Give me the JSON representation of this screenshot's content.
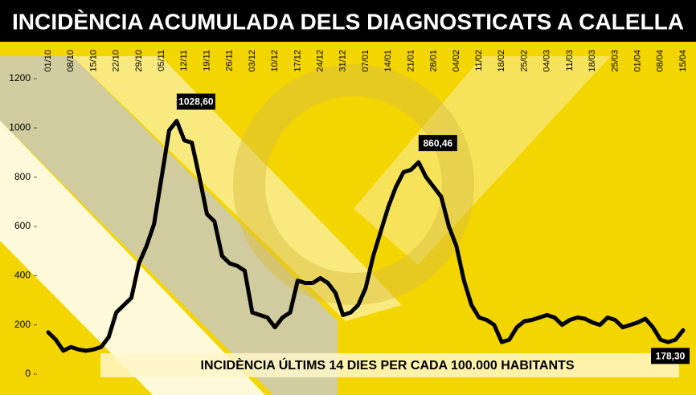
{
  "chart_data": {
    "type": "line",
    "title": "INCIDÈNCIA ACUMULADA DELS DIAGNOSTICATS A CALELLA",
    "subtitle": "INCIDÈNCIA ÚLTIMS 14 DIES PER CADA 100.000 HABITANTS",
    "categories": [
      "01/10",
      null,
      null,
      "08/10",
      null,
      null,
      "15/10",
      null,
      null,
      "22/10",
      null,
      null,
      "29/10",
      null,
      null,
      "05/11",
      null,
      null,
      "12/11",
      null,
      null,
      "19/11",
      null,
      null,
      "26/11",
      null,
      null,
      "03/12",
      null,
      null,
      "10/12",
      null,
      null,
      "17/12",
      null,
      null,
      "24/12",
      null,
      null,
      "31/12",
      null,
      null,
      "07/01",
      null,
      null,
      "14/01",
      null,
      null,
      "21/01",
      null,
      null,
      "28/01",
      null,
      null,
      "04/02",
      null,
      null,
      "11/02",
      null,
      null,
      "18/02",
      null,
      null,
      "25/02",
      null,
      null,
      "04/03",
      null,
      null,
      "11/03",
      null,
      null,
      "18/03",
      null,
      null,
      "25/03",
      null,
      null,
      "01/04",
      null,
      null,
      "08/04",
      null,
      null,
      "15/04"
    ],
    "values": [
      170,
      140,
      95,
      110,
      100,
      95,
      100,
      110,
      150,
      250,
      280,
      310,
      450,
      520,
      610,
      800,
      990,
      1028.6,
      950,
      940,
      800,
      650,
      620,
      480,
      450,
      440,
      420,
      250,
      240,
      230,
      190,
      230,
      250,
      380,
      370,
      370,
      390,
      370,
      330,
      240,
      250,
      280,
      350,
      480,
      580,
      680,
      760,
      820,
      830,
      860.46,
      800,
      760,
      720,
      600,
      520,
      380,
      280,
      230,
      220,
      200,
      130,
      140,
      190,
      215,
      220,
      230,
      240,
      230,
      200,
      220,
      230,
      225,
      210,
      200,
      230,
      220,
      190,
      200,
      210,
      225,
      190,
      140,
      130,
      140,
      178.3
    ],
    "value_labels": [
      null,
      null,
      null,
      null,
      null,
      null,
      null,
      null,
      null,
      null,
      null,
      null,
      null,
      null,
      null,
      null,
      null,
      "1028,60",
      null,
      null,
      null,
      null,
      null,
      null,
      null,
      null,
      null,
      null,
      null,
      null,
      null,
      null,
      null,
      null,
      null,
      null,
      null,
      null,
      null,
      null,
      null,
      null,
      null,
      null,
      null,
      null,
      null,
      null,
      null,
      "860,46",
      null,
      null,
      null,
      null,
      null,
      null,
      null,
      null,
      null,
      null,
      null,
      null,
      null,
      null,
      null,
      null,
      null,
      null,
      null,
      null,
      null,
      null,
      null,
      null,
      null,
      null,
      null,
      null,
      null,
      null,
      null,
      null,
      null,
      null,
      "178,30"
    ],
    "color": "#000000",
    "ylim": [
      0,
      1200
    ],
    "yticks": [
      0,
      200,
      400,
      600,
      800,
      1000,
      1200
    ],
    "grid": false
  }
}
